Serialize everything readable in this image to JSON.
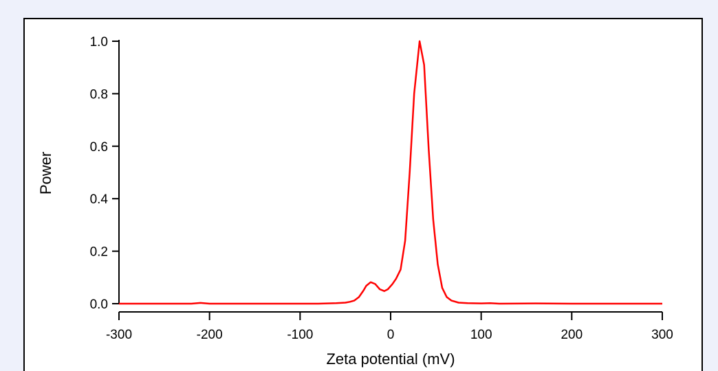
{
  "chart_data": {
    "type": "line",
    "title": "",
    "xlabel": "Zeta potential (mV)",
    "ylabel": "Power",
    "xlim": [
      -300,
      300
    ],
    "ylim": [
      0,
      1.0
    ],
    "xticks": [
      -300,
      -200,
      -100,
      0,
      100,
      200,
      300
    ],
    "xtick_labels": [
      "-300",
      "-200",
      "-100",
      "0",
      "100",
      "200",
      "300"
    ],
    "yticks": [
      0,
      0.2,
      0.4,
      0.6,
      0.8,
      1.0
    ],
    "ytick_labels": [
      "0.0",
      "0.2",
      "0.4",
      "0.6",
      "0.8",
      "1.0"
    ],
    "grid": false,
    "colors": {
      "line": "#ff0000",
      "axis": "#000000",
      "frame_bg": "#ffffff",
      "page_bg": "#eef1fb"
    },
    "series": [
      {
        "points": [
          [
            -300,
            0
          ],
          [
            -220,
            0
          ],
          [
            -210,
            0.003
          ],
          [
            -200,
            0
          ],
          [
            -120,
            0
          ],
          [
            -80,
            0
          ],
          [
            -70,
            0.001
          ],
          [
            -60,
            0.002
          ],
          [
            -50,
            0.004
          ],
          [
            -45,
            0.007
          ],
          [
            -40,
            0.012
          ],
          [
            -35,
            0.025
          ],
          [
            -30,
            0.05
          ],
          [
            -27,
            0.068
          ],
          [
            -22,
            0.082
          ],
          [
            -17,
            0.075
          ],
          [
            -12,
            0.055
          ],
          [
            -7,
            0.048
          ],
          [
            -3,
            0.055
          ],
          [
            2,
            0.075
          ],
          [
            6,
            0.095
          ],
          [
            11,
            0.13
          ],
          [
            16,
            0.24
          ],
          [
            21,
            0.5
          ],
          [
            26,
            0.8
          ],
          [
            32,
            1.0
          ],
          [
            37,
            0.91
          ],
          [
            42,
            0.59
          ],
          [
            47,
            0.32
          ],
          [
            52,
            0.15
          ],
          [
            57,
            0.06
          ],
          [
            62,
            0.025
          ],
          [
            67,
            0.012
          ],
          [
            75,
            0.004
          ],
          [
            85,
            0.002
          ],
          [
            100,
            0.001
          ],
          [
            110,
            0.002
          ],
          [
            120,
            0
          ],
          [
            160,
            0.001
          ],
          [
            200,
            0
          ],
          [
            300,
            0
          ]
        ]
      }
    ]
  }
}
